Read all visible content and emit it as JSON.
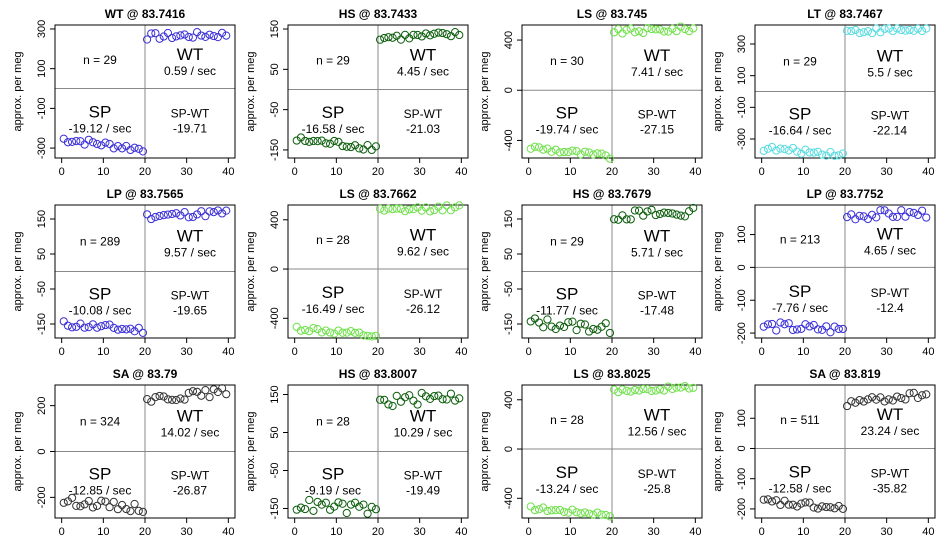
{
  "chart_data": [
    {
      "type": "scatter",
      "title": "WT @ 83.7416",
      "ylabel": "approx. per meg",
      "xlim": [
        0,
        40
      ],
      "ylim": [
        -350,
        320
      ],
      "yticks": [
        300,
        100,
        -100,
        -300
      ],
      "xticks": [
        0,
        10,
        20,
        30,
        40
      ],
      "n_label": "n = 29",
      "wt_label": "WT",
      "wt_rate": "0.59 / sec",
      "sp_label": "SP",
      "sp_rate": "-19.12 / sec",
      "diff_label": "SP-WT",
      "diff_value": "-19.71",
      "color": "#3a2fd6",
      "sp_level": -255,
      "sp_slope": -1.6,
      "wt_level": 262,
      "wt_slope": 0.3,
      "noise": 0.05
    },
    {
      "type": "scatter",
      "title": "HS @ 83.7433",
      "ylabel": "approx. per meg",
      "xlim": [
        0,
        40
      ],
      "ylim": [
        -170,
        160
      ],
      "yticks": [
        150,
        50,
        -50,
        -150
      ],
      "xticks": [
        0,
        10,
        20,
        30,
        40
      ],
      "n_label": "n = 29",
      "wt_label": "WT",
      "wt_rate": "4.45 / sec",
      "sp_label": "SP",
      "sp_rate": "-16.58 / sec",
      "diff_label": "SP-WT",
      "diff_value": "-21.03",
      "color": "#0b5d0b",
      "sp_level": -125,
      "sp_slope": -1.2,
      "wt_level": 128,
      "wt_slope": 0.5,
      "noise": 0.05
    },
    {
      "type": "scatter",
      "title": "LS @ 83.745",
      "ylabel": "approx. per meg",
      "xlim": [
        0,
        40
      ],
      "ylim": [
        -540,
        520
      ],
      "yticks": [
        400,
        0,
        -400
      ],
      "xticks": [
        0,
        10,
        20,
        30,
        40
      ],
      "n_label": "n = 30",
      "wt_label": "WT",
      "wt_rate": "7.41 / sec",
      "sp_label": "SP",
      "sp_rate": "-19.74 / sec",
      "diff_label": "SP-WT",
      "diff_value": "-27.15",
      "color": "#6fe04a",
      "sp_level": -455,
      "sp_slope": -1.5,
      "wt_level": 465,
      "wt_slope": 0.5,
      "noise": 0.04
    },
    {
      "type": "scatter",
      "title": "LT @ 83.7467",
      "ylabel": "approx. per meg",
      "xlim": [
        0,
        40
      ],
      "ylim": [
        -420,
        420
      ],
      "yticks": [
        300,
        100,
        -100,
        -300
      ],
      "xticks": [
        0,
        10,
        20,
        30,
        40
      ],
      "n_label": "n = 29",
      "wt_label": "WT",
      "wt_rate": "5.5 / sec",
      "sp_label": "SP",
      "sp_rate": "-16.64 / sec",
      "diff_label": "SP-WT",
      "diff_value": "-22.14",
      "color": "#58dbe0",
      "sp_level": -360,
      "sp_slope": -0.9,
      "wt_level": 380,
      "wt_slope": 0.3,
      "noise": 0.04
    },
    {
      "type": "scatter",
      "title": "LP @ 83.7565",
      "ylabel": "approx. per meg",
      "xlim": [
        0,
        40
      ],
      "ylim": [
        -190,
        190
      ],
      "yticks": [
        150,
        50,
        -50,
        -150
      ],
      "xticks": [
        0,
        10,
        20,
        30,
        40
      ],
      "n_label": "n = 289",
      "wt_label": "WT",
      "wt_rate": "9.57 / sec",
      "sp_label": "SP",
      "sp_rate": "-10.08 / sec",
      "diff_label": "SP-WT",
      "diff_value": "-19.65",
      "color": "#3a2fd6",
      "sp_level": -150,
      "sp_slope": -1.0,
      "wt_level": 158,
      "wt_slope": 0.6,
      "noise": 0.05
    },
    {
      "type": "scatter",
      "title": "LS @ 83.7662",
      "ylabel": "approx. per meg",
      "xlim": [
        0,
        40
      ],
      "ylim": [
        -560,
        520
      ],
      "yticks": [
        400,
        0,
        -400
      ],
      "xticks": [
        0,
        10,
        20,
        30,
        40
      ],
      "n_label": "n = 28",
      "wt_label": "WT",
      "wt_rate": "9.62 / sec",
      "sp_label": "SP",
      "sp_rate": "-16.49 / sec",
      "diff_label": "SP-WT",
      "diff_value": "-26.12",
      "color": "#6fe04a",
      "sp_level": -480,
      "sp_slope": -1.3,
      "wt_level": 470,
      "wt_slope": 0.6,
      "noise": 0.04
    },
    {
      "type": "scatter",
      "title": "HS @ 83.7679",
      "ylabel": "approx. per meg",
      "xlim": [
        0,
        40
      ],
      "ylim": [
        -190,
        190
      ],
      "yticks": [
        150,
        50,
        -50,
        -150
      ],
      "xticks": [
        0,
        10,
        20,
        30,
        40
      ],
      "n_label": "n = 29",
      "wt_label": "WT",
      "wt_rate": "5.71 / sec",
      "sp_label": "SP",
      "sp_rate": "-11.77 / sec",
      "diff_label": "SP-WT",
      "diff_value": "-17.48",
      "color": "#0b5d0b",
      "sp_level": -145,
      "sp_slope": -1.0,
      "wt_level": 160,
      "wt_slope": 0.4,
      "noise": 0.08
    },
    {
      "type": "scatter",
      "title": "LP @ 83.7752",
      "ylabel": "approx. per meg",
      "xlim": [
        0,
        40
      ],
      "ylim": [
        -215,
        190
      ],
      "yticks": [
        100,
        0,
        -100,
        -200
      ],
      "xticks": [
        0,
        10,
        20,
        30,
        40
      ],
      "n_label": "n = 213",
      "wt_label": "WT",
      "wt_rate": "4.65 / sec",
      "sp_label": "SP",
      "sp_rate": "-7.76 / sec",
      "diff_label": "SP-WT",
      "diff_value": "-12.4",
      "color": "#3a2fd6",
      "sp_level": -178,
      "sp_slope": -0.6,
      "wt_level": 158,
      "wt_slope": 0.3,
      "noise": 0.07
    },
    {
      "type": "scatter",
      "title": "SA @ 83.79",
      "ylabel": "approx. per meg",
      "xlim": [
        0,
        40
      ],
      "ylim": [
        -290,
        290
      ],
      "yticks": [
        200,
        0,
        -200
      ],
      "xticks": [
        0,
        10,
        20,
        30,
        40
      ],
      "n_label": "n = 324",
      "wt_label": "WT",
      "wt_rate": "14.02 / sec",
      "sp_label": "SP",
      "sp_rate": "-12.85 / sec",
      "diff_label": "SP-WT",
      "diff_value": "-26.87",
      "color": "#333333",
      "sp_level": -215,
      "sp_slope": -1.2,
      "wt_level": 228,
      "wt_slope": 1.2,
      "noise": 0.06
    },
    {
      "type": "scatter",
      "title": "HS @ 83.8007",
      "ylabel": "approx. per meg",
      "xlim": [
        0,
        40
      ],
      "ylim": [
        -175,
        175
      ],
      "yticks": [
        150,
        50,
        -50,
        -150
      ],
      "xticks": [
        0,
        10,
        20,
        30,
        40
      ],
      "n_label": "n = 28",
      "wt_label": "WT",
      "wt_rate": "10.29 / sec",
      "sp_label": "SP",
      "sp_rate": "-9.19 / sec",
      "diff_label": "SP-WT",
      "diff_value": "-19.49",
      "color": "#0b5d0b",
      "sp_level": -140,
      "sp_slope": -0.8,
      "wt_level": 130,
      "wt_slope": 1.0,
      "noise": 0.09
    },
    {
      "type": "scatter",
      "title": "LS @ 83.8025",
      "ylabel": "approx. per meg",
      "xlim": [
        0,
        40
      ],
      "ylim": [
        -560,
        520
      ],
      "yticks": [
        400,
        0,
        -400
      ],
      "xticks": [
        0,
        10,
        20,
        30,
        40
      ],
      "n_label": "n = 28",
      "wt_label": "WT",
      "wt_rate": "12.56 / sec",
      "sp_label": "SP",
      "sp_rate": "-13.24 / sec",
      "diff_label": "SP-WT",
      "diff_value": "-25.8",
      "color": "#6fe04a",
      "sp_level": -480,
      "sp_slope": -1.0,
      "wt_level": 470,
      "wt_slope": 0.6,
      "noise": 0.03
    },
    {
      "type": "scatter",
      "title": "SA @ 83.819",
      "ylabel": "approx. per meg",
      "xlim": [
        0,
        40
      ],
      "ylim": [
        -230,
        210
      ],
      "yticks": [
        100,
        0,
        -100,
        -200
      ],
      "xticks": [
        0,
        10,
        20,
        30,
        40
      ],
      "n_label": "n = 511",
      "wt_label": "WT",
      "wt_rate": "23.24 / sec",
      "sp_label": "SP",
      "sp_rate": "-12.58 / sec",
      "diff_label": "SP-WT",
      "diff_value": "-35.82",
      "color": "#333333",
      "sp_level": -175,
      "sp_slope": -1.2,
      "wt_level": 150,
      "wt_slope": 1.4,
      "noise": 0.05
    }
  ]
}
